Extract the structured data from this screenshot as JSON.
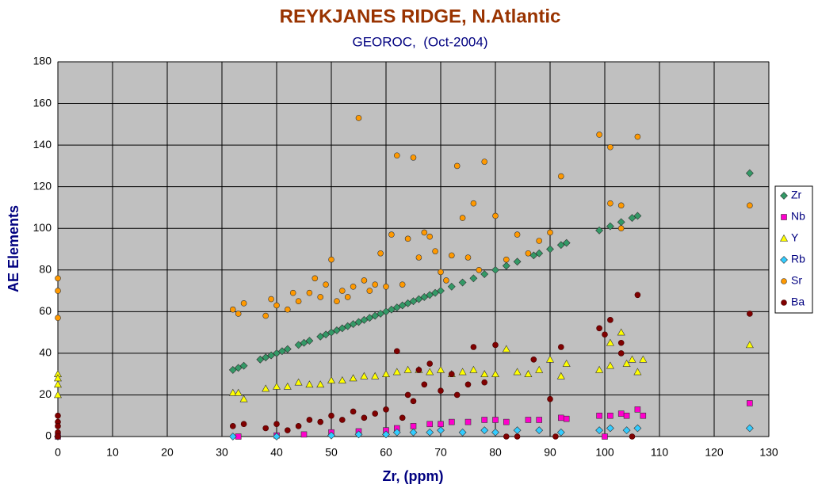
{
  "chart_data": {
    "type": "scatter",
    "title": "REYKJANES RIDGE, N.Atlantic",
    "subtitle": "GEOROC,  (Oct-2004)",
    "x_label": "Zr, (ppm)",
    "y_label": "AE Elements",
    "xlim": [
      0,
      130
    ],
    "xticks": [
      0,
      10,
      20,
      30,
      40,
      50,
      60,
      70,
      80,
      90,
      100,
      110,
      120,
      130
    ],
    "ylim": [
      0,
      180
    ],
    "yticks": [
      0,
      20,
      40,
      60,
      80,
      100,
      120,
      140,
      160,
      180
    ],
    "grid": true,
    "legend": "right",
    "series": [
      {
        "name": "Zr",
        "color": "#339966",
        "marker": "diamond",
        "x": [
          32,
          33,
          34,
          37,
          38,
          39,
          40,
          41,
          42,
          44,
          45,
          46,
          48,
          49,
          50,
          51,
          52,
          53,
          54,
          55,
          56,
          57,
          58,
          59,
          60,
          61,
          62,
          63,
          64,
          65,
          66,
          67,
          68,
          69,
          70,
          72,
          74,
          76,
          78,
          80,
          82,
          84,
          87,
          88,
          90,
          92,
          93,
          99,
          101,
          103,
          105,
          106,
          126.5
        ],
        "values": [
          32,
          33,
          34,
          37,
          38,
          39,
          40,
          41,
          42,
          44,
          45,
          46,
          48,
          49,
          50,
          51,
          52,
          53,
          54,
          55,
          56,
          57,
          58,
          59,
          60,
          61,
          62,
          63,
          64,
          65,
          66,
          67,
          68,
          69,
          70,
          72,
          74,
          76,
          78,
          80,
          82,
          84,
          87,
          88,
          90,
          92,
          93,
          99,
          101,
          103,
          105,
          106,
          126.5
        ]
      },
      {
        "name": "Nb",
        "color": "#ff00cc",
        "marker": "square",
        "x": [
          0,
          33,
          40,
          45,
          50,
          55,
          60,
          62,
          65,
          68,
          70,
          72,
          75,
          78,
          80,
          82,
          86,
          88,
          92,
          93,
          99,
          100,
          101,
          103,
          104,
          106,
          107,
          126.5
        ],
        "values": [
          0,
          0,
          0.5,
          1,
          2,
          2.5,
          3,
          4,
          5,
          6,
          6,
          7,
          7,
          8,
          8,
          7,
          8,
          8,
          9,
          8.5,
          10,
          0,
          10,
          11,
          10,
          13,
          10,
          16
        ]
      },
      {
        "name": "Y",
        "color": "#ffff00",
        "marker": "triangle",
        "x": [
          0,
          0,
          0,
          0,
          32,
          33,
          34,
          38,
          40,
          42,
          44,
          46,
          48,
          50,
          52,
          54,
          56,
          58,
          60,
          62,
          64,
          66,
          68,
          70,
          72,
          74,
          76,
          78,
          80,
          82,
          84,
          86,
          88,
          90,
          92,
          93,
          99,
          101,
          101,
          103,
          104,
          105,
          106,
          107,
          126.5
        ],
        "values": [
          30,
          28,
          25,
          20,
          21,
          21,
          18,
          23,
          24,
          24,
          26,
          25,
          25,
          27,
          27,
          28,
          29,
          29,
          30,
          31,
          32,
          32,
          31,
          32,
          30,
          31,
          32,
          30,
          30,
          42,
          31,
          30,
          32,
          37,
          29,
          35,
          32,
          34,
          45,
          50,
          35,
          37,
          31,
          37,
          44
        ]
      },
      {
        "name": "Rb",
        "color": "#33ccff",
        "marker": "diamond",
        "x": [
          0,
          32,
          40,
          50,
          55,
          60,
          62,
          65,
          68,
          70,
          74,
          78,
          80,
          84,
          88,
          92,
          99,
          101,
          104,
          106,
          126.5
        ],
        "values": [
          0,
          0,
          0,
          0.5,
          1,
          1,
          2,
          2,
          2,
          3,
          2,
          3,
          2,
          3,
          3,
          2,
          3,
          4,
          3,
          4,
          4
        ]
      },
      {
        "name": "Sr",
        "color": "#ff9900",
        "marker": "circle",
        "x": [
          0,
          0,
          0,
          32,
          33,
          34,
          38,
          39,
          40,
          42,
          43,
          44,
          46,
          47,
          48,
          49,
          50,
          51,
          52,
          53,
          54,
          55,
          56,
          57,
          58,
          59,
          60,
          61,
          62,
          63,
          64,
          65,
          66,
          67,
          68,
          69,
          70,
          71,
          72,
          73,
          74,
          75,
          76,
          77,
          78,
          80,
          82,
          84,
          86,
          88,
          90,
          92,
          99,
          101,
          101,
          103,
          103,
          106,
          126.5
        ],
        "values": [
          76,
          70,
          57,
          61,
          59,
          64,
          58,
          66,
          63,
          61,
          69,
          65,
          69,
          76,
          67,
          73,
          85,
          65,
          70,
          67,
          72,
          153,
          75,
          70,
          73,
          88,
          72,
          97,
          135,
          73,
          95,
          134,
          86,
          98,
          96,
          89,
          79,
          75,
          87,
          130,
          105,
          86,
          112,
          80,
          132,
          106,
          85,
          97,
          88,
          94,
          98,
          125,
          145,
          139,
          112,
          111,
          100,
          144,
          111
        ]
      },
      {
        "name": "Ba",
        "color": "#800000",
        "marker": "circle",
        "x": [
          0,
          0,
          0,
          0,
          0,
          32,
          34,
          38,
          40,
          42,
          44,
          46,
          48,
          50,
          52,
          54,
          56,
          58,
          60,
          62,
          63,
          64,
          65,
          66,
          67,
          68,
          70,
          72,
          73,
          75,
          76,
          78,
          80,
          82,
          84,
          87,
          90,
          91,
          92,
          99,
          100,
          101,
          103,
          103,
          105,
          106,
          126.5
        ],
        "values": [
          10,
          7,
          5,
          2,
          0,
          5,
          6,
          4,
          6,
          3,
          5,
          8,
          7,
          10,
          8,
          12,
          9,
          11,
          13,
          41,
          9,
          20,
          17,
          32,
          25,
          35,
          22,
          30,
          20,
          25,
          43,
          26,
          44,
          0,
          0,
          37,
          18,
          0,
          43,
          52,
          49,
          56,
          45,
          40,
          0,
          68,
          59
        ]
      }
    ]
  }
}
